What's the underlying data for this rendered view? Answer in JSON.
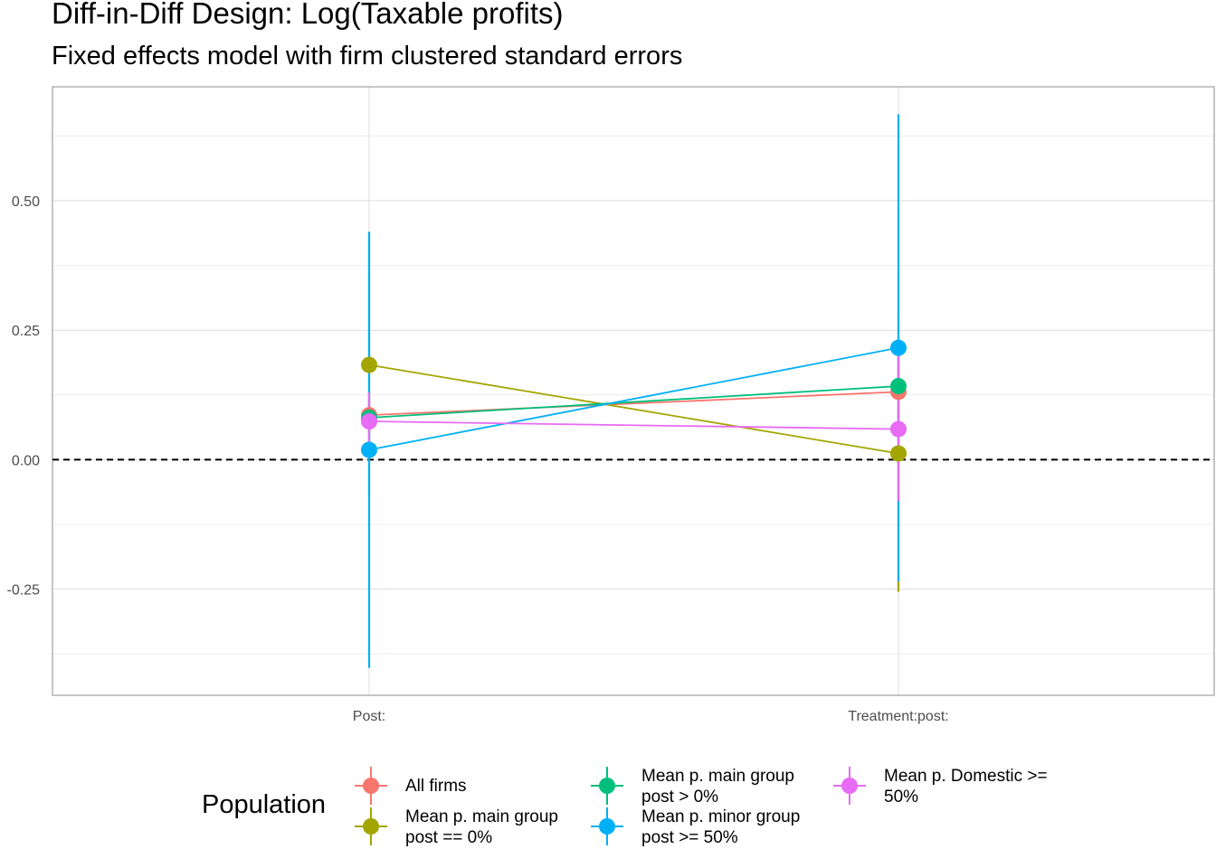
{
  "chart_data": {
    "type": "scatter",
    "title": "Diff-in-Diff Design: Log(Taxable profits)",
    "subtitle": "Fixed effects model with firm clustered standard errors",
    "categories": [
      "Post:",
      "Treatment:post:"
    ],
    "y_ticks": [
      "0.50",
      "0.25",
      "0.00",
      "-0.25"
    ],
    "y_tick_values": [
      0.5,
      0.25,
      0.0,
      -0.25
    ],
    "ylim": [
      -0.455,
      0.72
    ],
    "reference_line": 0.0,
    "grid": true,
    "legend_title": "Population",
    "legend_position": "bottom",
    "series": [
      {
        "name": "All firms",
        "color": "#F8766D",
        "values": [
          0.086,
          0.131
        ],
        "lower": [
          0.05,
          0.08
        ],
        "upper": [
          0.12,
          0.18
        ]
      },
      {
        "name": "Mean p. main group\npost == 0%",
        "color": "#A3A500",
        "values": [
          0.183,
          0.012
        ],
        "lower": [
          -0.07,
          -0.255
        ],
        "upper": [
          0.44,
          0.28
        ]
      },
      {
        "name": "Mean p. main group\npost > 0%",
        "color": "#00BF7D",
        "values": [
          0.081,
          0.142
        ],
        "lower": [
          0.03,
          0.07
        ],
        "upper": [
          0.13,
          0.21
        ]
      },
      {
        "name": "Mean p. minor group\npost >= 50%",
        "color": "#00B0F6",
        "values": [
          0.019,
          0.216
        ],
        "lower": [
          -0.402,
          -0.235
        ],
        "upper": [
          0.44,
          0.667
        ]
      },
      {
        "name": "Mean p. Domestic >=\n50%",
        "color": "#E76BF3",
        "values": [
          0.074,
          0.059
        ],
        "lower": [
          0.02,
          -0.08
        ],
        "upper": [
          0.13,
          0.2
        ]
      }
    ]
  }
}
